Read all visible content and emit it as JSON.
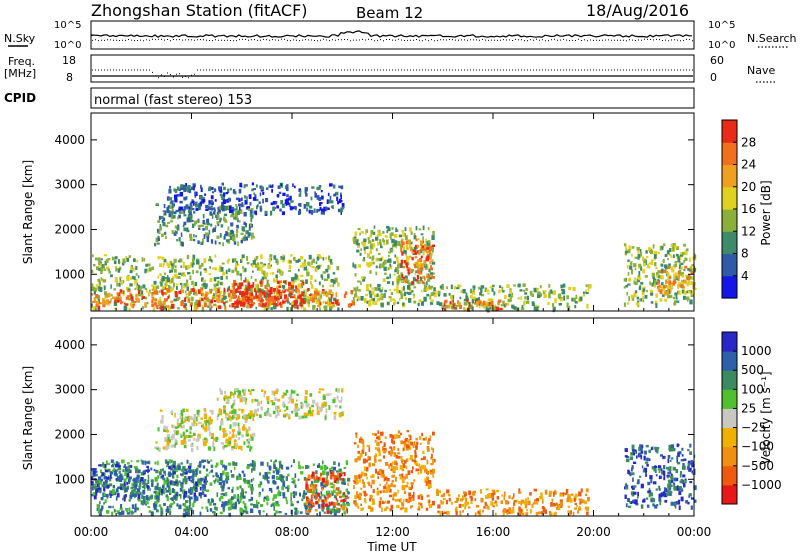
{
  "header": {
    "station": "Zhongshan Station (fitACF)",
    "beam": "Beam 12",
    "date": "18/Aug/2016"
  },
  "noise_panel": {
    "left_label": "N.Sky",
    "right_label": "N.Search",
    "left_ticks": [
      "10^5",
      "10^0"
    ],
    "right_ticks": [
      "10^5",
      "10^0"
    ]
  },
  "freq_panel": {
    "left_label_1": "Freq.",
    "left_label_2": "[MHz]",
    "right_label": "Nave",
    "left_ticks": [
      "18",
      "8"
    ],
    "right_ticks": [
      "60",
      "0"
    ]
  },
  "cpid_panel": {
    "label": "CPID",
    "mode": "normal (fast stereo) 153"
  },
  "x_axis": {
    "label": "Time UT",
    "ticks": [
      "00:00",
      "04:00",
      "08:00",
      "12:00",
      "16:00",
      "20:00",
      "00:00"
    ]
  },
  "chart_data": [
    {
      "type": "heatmap",
      "panel": "power",
      "ylabel": "Slant Range [km]",
      "y_ticks": [
        1000,
        2000,
        3000,
        4000
      ],
      "ylim": [
        180,
        4600
      ],
      "xlim_hours": [
        0,
        24
      ],
      "colorbar_label": "Power [dB]",
      "colorbar_ticks": [
        "4",
        "8",
        "12",
        "16",
        "20",
        "24",
        "28"
      ],
      "colorbar_colors": [
        "#1515e8",
        "#2e5aa8",
        "#3d8a6a",
        "#8ab03a",
        "#e0d020",
        "#f0a020",
        "#f07020",
        "#e82a16"
      ],
      "regions": [
        {
          "t0": 0.0,
          "t1": 9.8,
          "r0": 250,
          "r1": 1450,
          "level": 3
        },
        {
          "t0": 0.0,
          "t1": 10.4,
          "r0": 300,
          "r1": 700,
          "level": 6
        },
        {
          "t0": 5.5,
          "t1": 8.5,
          "r0": 350,
          "r1": 900,
          "level": 7
        },
        {
          "t0": 2.5,
          "t1": 6.5,
          "r0": 1700,
          "r1": 2600,
          "level": 2
        },
        {
          "t0": 3.0,
          "t1": 10.0,
          "r0": 2400,
          "r1": 3050,
          "level": 1
        },
        {
          "t0": 10.4,
          "t1": 13.6,
          "r0": 350,
          "r1": 2100,
          "level": 3
        },
        {
          "t0": 12.3,
          "t1": 13.6,
          "r0": 800,
          "r1": 1800,
          "level": 6
        },
        {
          "t0": 13.6,
          "t1": 19.8,
          "r0": 250,
          "r1": 800,
          "level": 3
        },
        {
          "t0": 14.0,
          "t1": 16.5,
          "r0": 220,
          "r1": 450,
          "level": 6
        },
        {
          "t0": 21.2,
          "t1": 24.0,
          "r0": 350,
          "r1": 1700,
          "level": 3
        },
        {
          "t0": 22.5,
          "t1": 24.0,
          "r0": 600,
          "r1": 1200,
          "level": 5
        }
      ]
    },
    {
      "type": "heatmap",
      "panel": "velocity",
      "ylabel": "Slant Range [km]",
      "y_ticks": [
        1000,
        2000,
        3000,
        4000
      ],
      "ylim": [
        180,
        4600
      ],
      "xlim_hours": [
        0,
        24
      ],
      "colorbar_label": "Velocity [m s⁻¹]",
      "colorbar_ticks": [
        "1000",
        "500",
        "100",
        "25",
        "−25",
        "−100",
        "−500",
        "−1000"
      ],
      "colorbar_colors": [
        "#e81818",
        "#f05a10",
        "#f09010",
        "#f0b000",
        "#c8c8c0",
        "#50c030",
        "#3c8a60",
        "#2c60a8",
        "#2828c8"
      ],
      "regions": [
        {
          "t0": 0.0,
          "t1": 10.2,
          "r0": 250,
          "r1": 1450,
          "level": 6
        },
        {
          "t0": 0.0,
          "t1": 4.5,
          "r0": 600,
          "r1": 1350,
          "level": 7
        },
        {
          "t0": 2.5,
          "t1": 6.5,
          "r0": 1700,
          "r1": 2600,
          "level": 4
        },
        {
          "t0": 5.0,
          "t1": 10.0,
          "r0": 2400,
          "r1": 3050,
          "level": 4
        },
        {
          "t0": 8.5,
          "t1": 10.2,
          "r0": 300,
          "r1": 1200,
          "level": 1
        },
        {
          "t0": 10.4,
          "t1": 13.6,
          "r0": 350,
          "r1": 2100,
          "level": 2
        },
        {
          "t0": 13.6,
          "t1": 19.8,
          "r0": 250,
          "r1": 800,
          "level": 2
        },
        {
          "t0": 21.2,
          "t1": 24.0,
          "r0": 400,
          "r1": 1800,
          "level": 7
        }
      ]
    }
  ]
}
